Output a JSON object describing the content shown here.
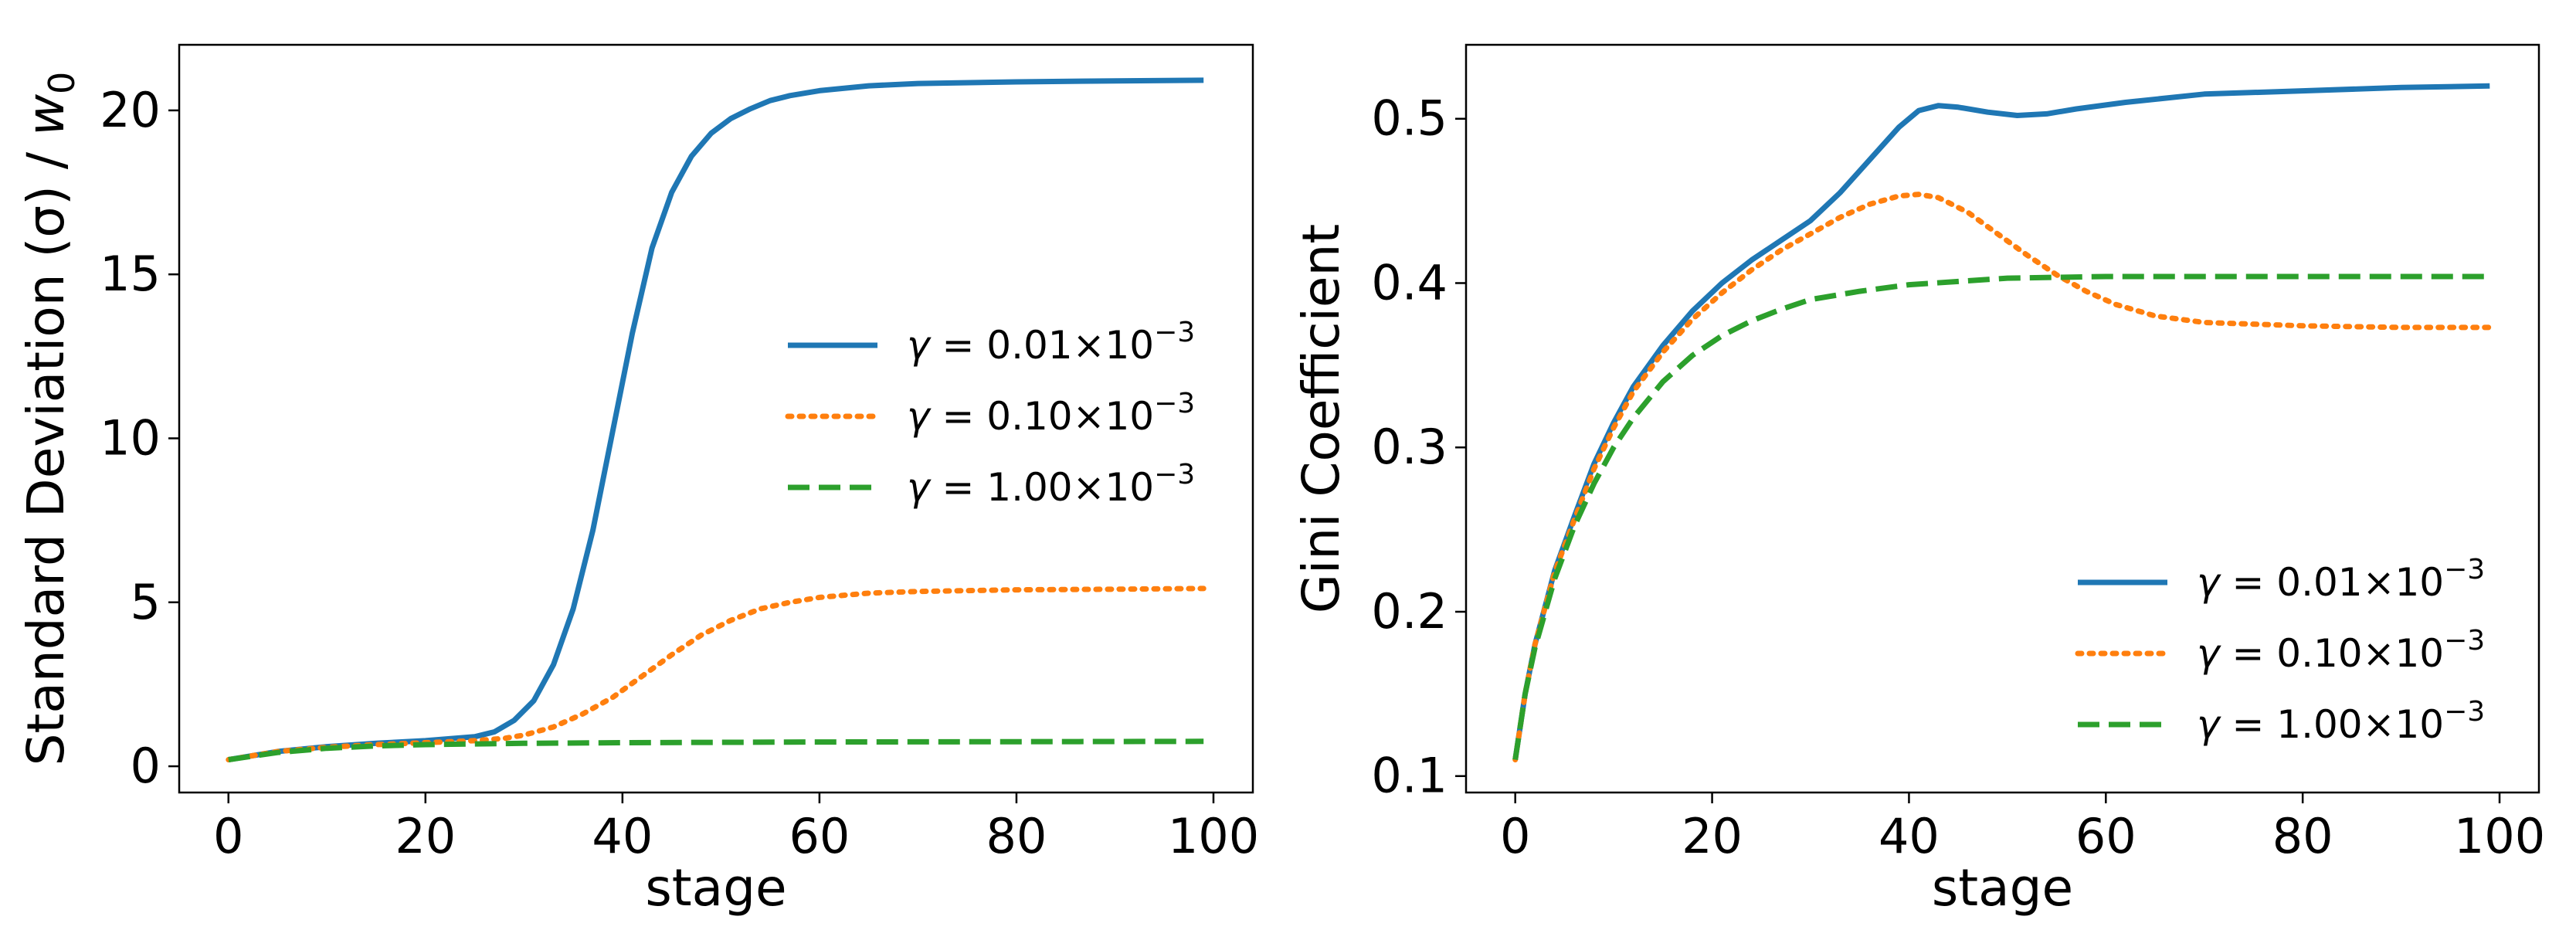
{
  "chart_data": [
    {
      "type": "line",
      "xlabel": "stage",
      "ylabel_parts": {
        "main": "Standard Deviation (σ) / ",
        "var": "w",
        "sub": "0"
      },
      "xlim": [
        -5,
        104
      ],
      "ylim": [
        -0.8,
        22
      ],
      "xticks": [
        0,
        20,
        40,
        60,
        80,
        100
      ],
      "xtick_labels": [
        "0",
        "20",
        "40",
        "60",
        "80",
        "100"
      ],
      "yticks": [
        0,
        5,
        10,
        15,
        20
      ],
      "ytick_labels": [
        "0",
        "5",
        "10",
        "15",
        "20"
      ],
      "legend_position": "center-right",
      "series": [
        {
          "name": "γ = 0.01×10−3",
          "legend_parts": {
            "gamma": "γ",
            "body": " = 0.01×10",
            "sup": "−3"
          },
          "style": "solid",
          "color": "#1f77b4",
          "points": [
            [
              0,
              0.2
            ],
            [
              5,
              0.45
            ],
            [
              10,
              0.6
            ],
            [
              15,
              0.7
            ],
            [
              20,
              0.78
            ],
            [
              25,
              0.9
            ],
            [
              27,
              1.05
            ],
            [
              29,
              1.4
            ],
            [
              31,
              2.0
            ],
            [
              33,
              3.1
            ],
            [
              35,
              4.8
            ],
            [
              37,
              7.2
            ],
            [
              39,
              10.2
            ],
            [
              41,
              13.2
            ],
            [
              43,
              15.8
            ],
            [
              45,
              17.5
            ],
            [
              47,
              18.6
            ],
            [
              49,
              19.3
            ],
            [
              51,
              19.75
            ],
            [
              53,
              20.05
            ],
            [
              55,
              20.3
            ],
            [
              57,
              20.45
            ],
            [
              60,
              20.6
            ],
            [
              65,
              20.75
            ],
            [
              70,
              20.82
            ],
            [
              80,
              20.87
            ],
            [
              90,
              20.9
            ],
            [
              99,
              20.92
            ]
          ]
        },
        {
          "name": "γ = 0.10×10−3",
          "legend_parts": {
            "gamma": "γ",
            "body": " = 0.10×10",
            "sup": "−3"
          },
          "style": "dotted",
          "color": "#ff7f0e",
          "points": [
            [
              0,
              0.2
            ],
            [
              5,
              0.45
            ],
            [
              10,
              0.58
            ],
            [
              15,
              0.66
            ],
            [
              20,
              0.72
            ],
            [
              25,
              0.78
            ],
            [
              28,
              0.85
            ],
            [
              30,
              0.95
            ],
            [
              33,
              1.2
            ],
            [
              36,
              1.6
            ],
            [
              39,
              2.1
            ],
            [
              42,
              2.75
            ],
            [
              45,
              3.4
            ],
            [
              48,
              4.0
            ],
            [
              51,
              4.45
            ],
            [
              54,
              4.8
            ],
            [
              57,
              5.0
            ],
            [
              60,
              5.15
            ],
            [
              65,
              5.28
            ],
            [
              70,
              5.33
            ],
            [
              80,
              5.38
            ],
            [
              90,
              5.4
            ],
            [
              99,
              5.42
            ]
          ]
        },
        {
          "name": "γ = 1.00×10−3",
          "legend_parts": {
            "gamma": "γ",
            "body": " = 1.00×10",
            "sup": "−3"
          },
          "style": "dashed",
          "color": "#2ca02c",
          "points": [
            [
              0,
              0.2
            ],
            [
              5,
              0.42
            ],
            [
              10,
              0.55
            ],
            [
              15,
              0.62
            ],
            [
              20,
              0.66
            ],
            [
              30,
              0.7
            ],
            [
              40,
              0.72
            ],
            [
              60,
              0.74
            ],
            [
              80,
              0.75
            ],
            [
              99,
              0.76
            ]
          ]
        }
      ]
    },
    {
      "type": "line",
      "xlabel": "stage",
      "ylabel_parts": {
        "main": "Gini Coefficient",
        "var": "",
        "sub": ""
      },
      "xlim": [
        -5,
        104
      ],
      "ylim": [
        0.09,
        0.545
      ],
      "xticks": [
        0,
        20,
        40,
        60,
        80,
        100
      ],
      "xtick_labels": [
        "0",
        "20",
        "40",
        "60",
        "80",
        "100"
      ],
      "yticks": [
        0.1,
        0.2,
        0.3,
        0.4,
        0.5
      ],
      "ytick_labels": [
        "0.1",
        "0.2",
        "0.3",
        "0.4",
        "0.5"
      ],
      "legend_position": "lower-right",
      "series": [
        {
          "name": "γ = 0.01×10−3",
          "legend_parts": {
            "gamma": "γ",
            "body": " = 0.01×10",
            "sup": "−3"
          },
          "style": "solid",
          "color": "#1f77b4",
          "points": [
            [
              0,
              0.11
            ],
            [
              1,
              0.15
            ],
            [
              2,
              0.18
            ],
            [
              4,
              0.225
            ],
            [
              6,
              0.258
            ],
            [
              8,
              0.29
            ],
            [
              10,
              0.315
            ],
            [
              12,
              0.337
            ],
            [
              15,
              0.362
            ],
            [
              18,
              0.383
            ],
            [
              21,
              0.4
            ],
            [
              24,
              0.414
            ],
            [
              27,
              0.426
            ],
            [
              30,
              0.438
            ],
            [
              33,
              0.455
            ],
            [
              36,
              0.475
            ],
            [
              39,
              0.495
            ],
            [
              41,
              0.505
            ],
            [
              43,
              0.508
            ],
            [
              45,
              0.507
            ],
            [
              48,
              0.504
            ],
            [
              51,
              0.502
            ],
            [
              54,
              0.503
            ],
            [
              57,
              0.506
            ],
            [
              62,
              0.51
            ],
            [
              70,
              0.515
            ],
            [
              80,
              0.517
            ],
            [
              90,
              0.519
            ],
            [
              99,
              0.52
            ]
          ]
        },
        {
          "name": "γ = 0.10×10−3",
          "legend_parts": {
            "gamma": "γ",
            "body": " = 0.10×10",
            "sup": "−3"
          },
          "style": "dotted",
          "color": "#ff7f0e",
          "points": [
            [
              0,
              0.11
            ],
            [
              1,
              0.15
            ],
            [
              2,
              0.18
            ],
            [
              4,
              0.224
            ],
            [
              6,
              0.256
            ],
            [
              8,
              0.287
            ],
            [
              10,
              0.312
            ],
            [
              12,
              0.334
            ],
            [
              15,
              0.358
            ],
            [
              18,
              0.378
            ],
            [
              21,
              0.394
            ],
            [
              24,
              0.408
            ],
            [
              27,
              0.42
            ],
            [
              30,
              0.43
            ],
            [
              33,
              0.44
            ],
            [
              36,
              0.448
            ],
            [
              39,
              0.453
            ],
            [
              41,
              0.454
            ],
            [
              43,
              0.452
            ],
            [
              46,
              0.443
            ],
            [
              49,
              0.43
            ],
            [
              52,
              0.417
            ],
            [
              55,
              0.405
            ],
            [
              58,
              0.395
            ],
            [
              61,
              0.387
            ],
            [
              65,
              0.38
            ],
            [
              70,
              0.376
            ],
            [
              80,
              0.374
            ],
            [
              90,
              0.373
            ],
            [
              99,
              0.373
            ]
          ]
        },
        {
          "name": "γ = 1.00×10−3",
          "legend_parts": {
            "gamma": "γ",
            "body": " = 1.00×10",
            "sup": "−3"
          },
          "style": "dashed",
          "color": "#2ca02c",
          "points": [
            [
              0,
              0.11
            ],
            [
              1,
              0.15
            ],
            [
              2,
              0.178
            ],
            [
              4,
              0.22
            ],
            [
              6,
              0.252
            ],
            [
              8,
              0.278
            ],
            [
              10,
              0.3
            ],
            [
              12,
              0.318
            ],
            [
              15,
              0.34
            ],
            [
              18,
              0.356
            ],
            [
              21,
              0.368
            ],
            [
              24,
              0.377
            ],
            [
              27,
              0.384
            ],
            [
              30,
              0.39
            ],
            [
              35,
              0.395
            ],
            [
              40,
              0.399
            ],
            [
              45,
              0.401
            ],
            [
              50,
              0.403
            ],
            [
              60,
              0.404
            ],
            [
              70,
              0.404
            ],
            [
              80,
              0.404
            ],
            [
              99,
              0.404
            ]
          ]
        }
      ]
    }
  ]
}
